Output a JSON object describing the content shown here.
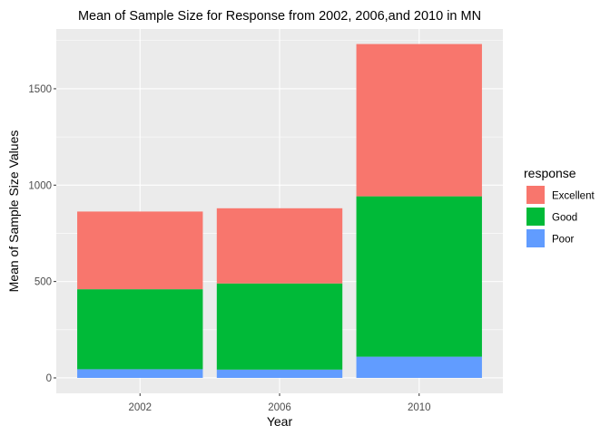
{
  "chart_data": {
    "type": "bar",
    "stacked": true,
    "title": "Mean of Sample Size for Response from 2002, 2006,and 2010 in MN",
    "xlabel": "Year",
    "ylabel": "Mean of Sample Size Values",
    "categories": [
      "2002",
      "2006",
      "2010"
    ],
    "series": [
      {
        "name": "Poor",
        "color": "#619CFF",
        "values": [
          45,
          43,
          110
        ]
      },
      {
        "name": "Good",
        "color": "#00BA38",
        "values": [
          415,
          447,
          832
        ]
      },
      {
        "name": "Excellent",
        "color": "#F8766D",
        "values": [
          403,
          390,
          790
        ]
      }
    ],
    "legend_order": [
      "Excellent",
      "Good",
      "Poor"
    ],
    "legend_title": "response",
    "legend_position": "right",
    "yticks": [
      0,
      500,
      1000,
      1500
    ],
    "yticks_labels": [
      "0",
      "500",
      "1000",
      "1500"
    ],
    "ylim": [
      -80,
      1810
    ],
    "grid": true,
    "background": "#EBEBEB"
  }
}
